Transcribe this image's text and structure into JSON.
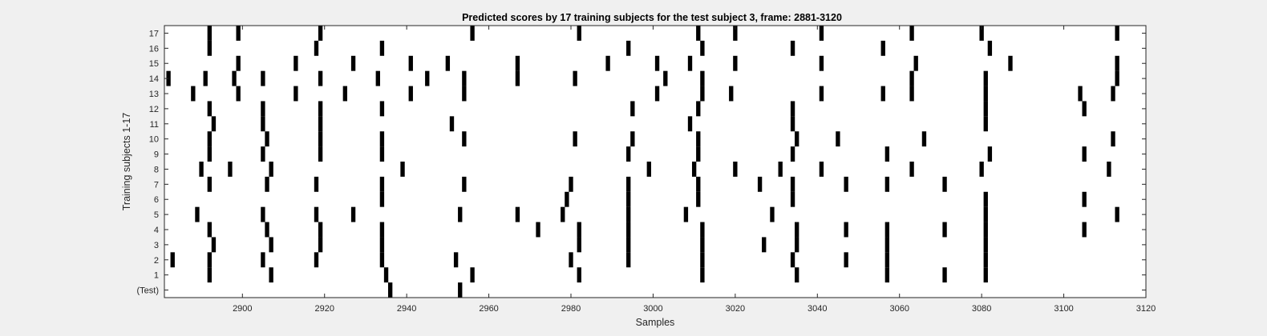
{
  "chart_data": {
    "type": "heatmap",
    "title": "Predicted scores by 17 training subjects for the test subject 3, frame: 2881-3120",
    "xlabel": "Samples",
    "ylabel": "Training subjects 1-17",
    "xlim": [
      2881,
      3120
    ],
    "xticks": [
      2900,
      2920,
      2940,
      2960,
      2980,
      3000,
      3020,
      3040,
      3060,
      3080,
      3100,
      3120
    ],
    "rows": [
      "(Test)",
      "1",
      "2",
      "3",
      "4",
      "5",
      "6",
      "7",
      "8",
      "9",
      "10",
      "11",
      "12",
      "13",
      "14",
      "15",
      "16",
      "17"
    ],
    "grid": false,
    "colors": {
      "mark": "#000000",
      "background": "#ffffff",
      "figure": "#f0f0f0"
    },
    "marks": [
      {
        "row": "(Test)",
        "x": [
          2936,
          2953
        ]
      },
      {
        "row": "1",
        "x": [
          2892,
          2907,
          2935,
          2956,
          2982,
          3012,
          3035,
          3057,
          3071,
          3081
        ]
      },
      {
        "row": "2",
        "x": [
          2883,
          2892,
          2905,
          2918,
          2934,
          2952,
          2980,
          2994,
          3012,
          3034,
          3047,
          3057,
          3081
        ]
      },
      {
        "row": "3",
        "x": [
          2893,
          2907,
          2919,
          2934,
          2982,
          2994,
          3012,
          3027,
          3035,
          3057,
          3081
        ]
      },
      {
        "row": "4",
        "x": [
          2892,
          2906,
          2919,
          2934,
          2972,
          2982,
          2994,
          3012,
          3035,
          3047,
          3057,
          3071,
          3081,
          3105
        ]
      },
      {
        "row": "5",
        "x": [
          2889,
          2905,
          2918,
          2927,
          2953,
          2967,
          2978,
          2994,
          3008,
          3029,
          3081,
          3113
        ]
      },
      {
        "row": "6",
        "x": [
          2934,
          2979,
          2994,
          3011,
          3034,
          3081,
          3105
        ]
      },
      {
        "row": "7",
        "x": [
          2892,
          2906,
          2918,
          2934,
          2954,
          2980,
          2994,
          3011,
          3026,
          3034,
          3047,
          3057,
          3071
        ]
      },
      {
        "row": "8",
        "x": [
          2890,
          2897,
          2907,
          2939,
          2999,
          3010,
          3020,
          3031,
          3041,
          3063,
          3080,
          3111
        ]
      },
      {
        "row": "9",
        "x": [
          2892,
          2905,
          2919,
          2934,
          2994,
          3011,
          3034,
          3057,
          3082,
          3105
        ]
      },
      {
        "row": "10",
        "x": [
          2892,
          2906,
          2919,
          2934,
          2954,
          2981,
          2995,
          3011,
          3035,
          3045,
          3066,
          3112
        ]
      },
      {
        "row": "11",
        "x": [
          2893,
          2905,
          2919,
          2951,
          3009,
          3034,
          3081
        ]
      },
      {
        "row": "12",
        "x": [
          2892,
          2905,
          2919,
          2934,
          2995,
          3011,
          3034,
          3081,
          3105
        ]
      },
      {
        "row": "13",
        "x": [
          2888,
          2899,
          2913,
          2925,
          2941,
          2954,
          3001,
          3012,
          3019,
          3041,
          3056,
          3063,
          3081,
          3104,
          3112
        ]
      },
      {
        "row": "14",
        "x": [
          2882,
          2891,
          2898,
          2905,
          2919,
          2933,
          2945,
          2954,
          2967,
          2981,
          3003,
          3012,
          3063,
          3081,
          3113
        ]
      },
      {
        "row": "15",
        "x": [
          2899,
          2913,
          2927,
          2941,
          2950,
          2967,
          2989,
          3001,
          3009,
          3020,
          3041,
          3064,
          3087,
          3113
        ]
      },
      {
        "row": "16",
        "x": [
          2892,
          2918,
          2934,
          2994,
          3012,
          3034,
          3056,
          3082
        ]
      },
      {
        "row": "17",
        "x": [
          2892,
          2899,
          2919,
          2956,
          2982,
          3011,
          3020,
          3041,
          3063,
          3080,
          3113
        ]
      }
    ]
  }
}
